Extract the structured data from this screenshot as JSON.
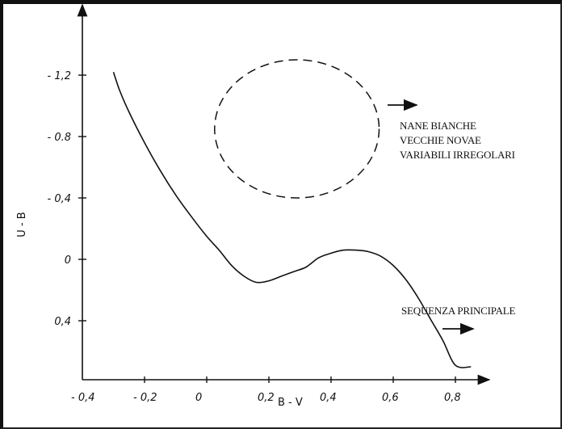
{
  "chart_data": {
    "type": "line",
    "title": "",
    "xlabel": "B - V",
    "ylabel": "U - B",
    "xlim": [
      -0.4,
      0.9
    ],
    "ylim": [
      -1.4,
      0.8
    ],
    "y_inverted": true,
    "grid": false,
    "x_ticks": [
      {
        "value": -0.4,
        "label": "- 0,4"
      },
      {
        "value": -0.2,
        "label": "- 0,2"
      },
      {
        "value": 0,
        "label": "0"
      },
      {
        "value": 0.2,
        "label": "0,2"
      },
      {
        "value": 0.4,
        "label": "0,4"
      },
      {
        "value": 0.6,
        "label": "0,6"
      },
      {
        "value": 0.8,
        "label": "0,8"
      }
    ],
    "y_ticks": [
      {
        "value": -1.2,
        "label": "- 1,2"
      },
      {
        "value": -0.8,
        "label": "- 0.8"
      },
      {
        "value": -0.4,
        "label": "- 0,4"
      },
      {
        "value": 0,
        "label": "0"
      },
      {
        "value": 0.4,
        "label": "0,4"
      }
    ],
    "series": [
      {
        "x": [
          -0.3,
          -0.28,
          -0.25,
          -0.2,
          -0.15,
          -0.1,
          -0.05,
          0,
          0.04,
          0.08,
          0.12,
          0.16,
          0.2,
          0.24,
          0.28,
          0.32,
          0.36,
          0.4,
          0.44,
          0.48,
          0.52,
          0.56,
          0.6,
          0.64,
          0.68,
          0.72,
          0.76,
          0.8,
          0.85
        ],
        "y": [
          -1.22,
          -1.1,
          -0.96,
          -0.76,
          -0.58,
          -0.42,
          -0.28,
          -0.15,
          -0.06,
          0.04,
          0.11,
          0.15,
          0.14,
          0.11,
          0.08,
          0.05,
          -0.01,
          -0.04,
          -0.06,
          -0.06,
          -0.05,
          -0.02,
          0.04,
          0.13,
          0.25,
          0.39,
          0.53,
          0.69,
          0.7
        ]
      }
    ],
    "regions": [
      {
        "cx": 0.29,
        "cy": -0.85,
        "rx": 0.27,
        "ry": 0.45
      }
    ],
    "annotations": [
      {
        "lines": [
          "NANE BIANCHE",
          "VECCHIE NOVAE",
          "VARIABILI IRREGOLARI"
        ]
      },
      {
        "lines": [
          "SEQUENZA PRINCIPALE"
        ]
      }
    ]
  }
}
